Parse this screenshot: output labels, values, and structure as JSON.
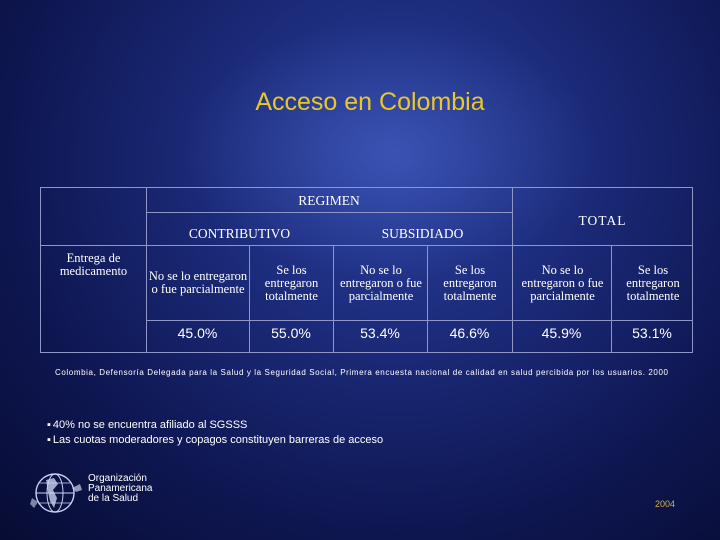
{
  "title": "Acceso en Colombia",
  "table": {
    "regimen_header": "REGIMEN",
    "contributivo_header": "CONTRIBUTIVO",
    "subsidiado_header": "SUBSIDIADO",
    "total_header": "TOTAL",
    "row_label": "Entrega de medicamento",
    "columns": [
      "No se lo entregaron o fue parcialmente",
      "Se los entregaron totalmente",
      "No se lo entregaron o fue parcialmente",
      "Se los entregaron totalmente",
      "No se lo entregaron o fue parcialmente",
      "Se los entregaron totalmente"
    ],
    "values": [
      "45.0%",
      "55.0%",
      "53.4%",
      "46.6%",
      "45.9%",
      "53.1%"
    ]
  },
  "source": "Colombia, Defensoría Delegada para la Salud y la Seguridad Social, Primera encuesta nacional de calidad en salud percibida por los usuarios. 2000",
  "bullets": [
    "40% no se encuentra afiliado al SGSSS",
    "Las cuotas moderadores y copagos constituyen barreras de acceso"
  ],
  "organization": {
    "line1": "Organización",
    "line2": "Panamericana",
    "line3": "de la Salud"
  },
  "year": "2004",
  "colors": {
    "title": "#e8c828",
    "background": "#1b2a78",
    "table_lines": "#8f97c8",
    "year": "#d4b23a"
  }
}
